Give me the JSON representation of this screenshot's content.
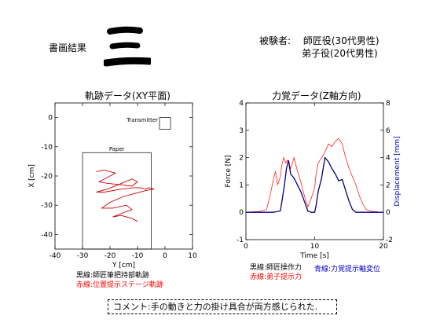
{
  "header": {
    "title": "書画結果",
    "big_character": "三"
  },
  "subjects": {
    "label": "被験者:",
    "master": "師匠役(30代男性)",
    "apprentice": "弟子役(20代男性)"
  },
  "comment": "コメント:手の動きと力の掛け具合が両方感じられた.",
  "chart_data": [
    {
      "type": "line",
      "title": "軌跡データ(XY平面)",
      "xlabel": "Y [cm]",
      "ylabel": "X [cm]",
      "xlim": [
        -40,
        10
      ],
      "ylim": [
        -45,
        5
      ],
      "xticks": [
        -40,
        -30,
        -20,
        -10,
        0,
        10
      ],
      "yticks": [
        -40,
        -30,
        -20,
        -10,
        0
      ],
      "annotations": {
        "transmitter": "Transmitter",
        "paper": "Paper"
      },
      "rects": {
        "transmitter": {
          "x": [
            -2,
            2
          ],
          "y": [
            0,
            -4
          ]
        },
        "paper": {
          "x": [
            -30,
            -5
          ],
          "y": [
            -12,
            -45
          ]
        }
      },
      "legend": [
        {
          "name": "黒線:師匠筆把持部軌跡",
          "color": "#000000"
        },
        {
          "name": "赤線:位置提示ステージ軌跡",
          "color": "#ff0000"
        }
      ],
      "series": [
        {
          "color": "#cc0000",
          "points": [
            [
              -25,
              -18.5
            ],
            [
              -22,
              -18
            ],
            [
              -18,
              -19
            ],
            [
              -21,
              -20.5
            ],
            [
              -24,
              -22
            ],
            [
              -21,
              -22.5
            ],
            [
              -16,
              -23
            ],
            [
              -12,
              -23.5
            ],
            [
              -10,
              -22
            ],
            [
              -12,
              -21
            ],
            [
              -17,
              -23
            ],
            [
              -21,
              -24.5
            ],
            [
              -25,
              -25.5
            ],
            [
              -22,
              -25.5
            ],
            [
              -16,
              -24.5
            ],
            [
              -11,
              -24
            ],
            [
              -9,
              -24
            ],
            [
              -7,
              -24.5
            ],
            [
              -6,
              -24
            ],
            [
              -4,
              -24.5
            ],
            [
              -7,
              -25
            ],
            [
              -11,
              -26
            ],
            [
              -15,
              -27
            ],
            [
              -20,
              -29
            ],
            [
              -23,
              -31
            ],
            [
              -19,
              -31
            ],
            [
              -14,
              -30
            ],
            [
              -12,
              -31.5
            ],
            [
              -15,
              -32.5
            ],
            [
              -19,
              -34
            ],
            [
              -16,
              -33.5
            ],
            [
              -12,
              -34.5
            ],
            [
              -10,
              -35.5
            ]
          ]
        }
      ]
    },
    {
      "type": "line",
      "title": "力覚データ(Z軸方向)",
      "xlabel": "Time [s]",
      "ylabel": "Force [N]",
      "y2label": "Displacement [mm]",
      "xlim": [
        0,
        20
      ],
      "ylim": [
        -1,
        4
      ],
      "y2lim": [
        -2,
        8
      ],
      "xticks": [
        0,
        10,
        20
      ],
      "yticks": [
        -1,
        0,
        1,
        2,
        3,
        4
      ],
      "y2ticks": [
        -2,
        0,
        2,
        4,
        6,
        8
      ],
      "legend": [
        {
          "name": "黒線:師匠操作力",
          "color": "#000000"
        },
        {
          "name": "赤線:弟子提示力",
          "color": "#ff0000"
        },
        {
          "name": "青線:力覚提示軸変位",
          "color": "#0000cc"
        }
      ],
      "series": [
        {
          "name": "Force",
          "color": "#ff2222",
          "axis": "left",
          "x": [
            0,
            1,
            2,
            3,
            3.5,
            4,
            4.3,
            4.6,
            5,
            5.2,
            5.5,
            5.8,
            6,
            6.2,
            6.5,
            7,
            7.5,
            8,
            8.5,
            9,
            9.5,
            10,
            10.2,
            10.5,
            11,
            11.5,
            12,
            12.5,
            13,
            13.5,
            14,
            14.5,
            15,
            15.5,
            16,
            16.5,
            17,
            17.5,
            18,
            18.5,
            19,
            19.5,
            20
          ],
          "y": [
            0,
            0.02,
            0.03,
            0.1,
            0.6,
            1.2,
            1.5,
            1.0,
            1.3,
            1.7,
            2.0,
            1.8,
            1.9,
            1.8,
            1.6,
            2.0,
            1.5,
            1.1,
            0.6,
            0.2,
            0.5,
            0.9,
            1.4,
            1.8,
            2.0,
            2.2,
            2.5,
            2.4,
            2.6,
            2.7,
            2.5,
            2.0,
            1.6,
            1.3,
            1.0,
            0.6,
            0.3,
            0.1,
            0.05,
            0.03,
            0.02,
            0.01,
            0.0
          ]
        },
        {
          "name": "Displacement",
          "color": "#00008b",
          "axis": "right",
          "x": [
            0,
            1,
            2,
            3,
            4,
            4.5,
            5,
            5.3,
            5.6,
            5.9,
            6.2,
            6.5,
            7,
            7.5,
            8,
            8.5,
            9,
            9.5,
            10,
            10.2,
            10.5,
            11,
            11.5,
            12,
            12.5,
            13,
            13.5,
            14,
            14.5,
            15,
            15.5,
            16,
            17,
            18,
            19,
            20
          ],
          "y": [
            0,
            0,
            0,
            0,
            0,
            0.05,
            0.1,
            1.0,
            2.0,
            3.2,
            3.8,
            2.8,
            2.5,
            2.0,
            1.5,
            0.8,
            0.1,
            0,
            0,
            0.5,
            1.5,
            2.5,
            4.0,
            3.7,
            3.2,
            2.8,
            2.3,
            2.4,
            1.6,
            0.8,
            0.2,
            0,
            0,
            0,
            0,
            0
          ]
        }
      ]
    }
  ]
}
